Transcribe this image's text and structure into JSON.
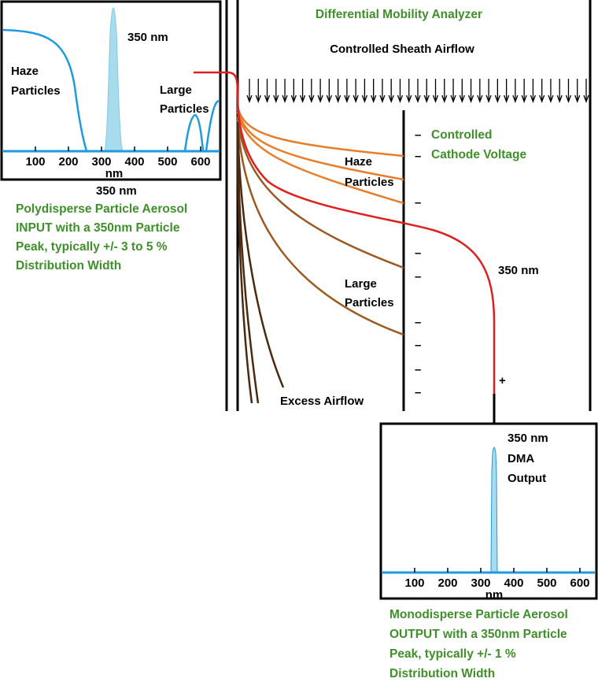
{
  "title": "Differential Mobility Analyzer",
  "sheath_label": "Controlled Sheath Airflow",
  "cathode_label": [
    "Controlled",
    "Cathode Voltage"
  ],
  "haze_label": [
    "Haze",
    "Particles"
  ],
  "large_label": [
    "Large",
    "Particles"
  ],
  "size_label_main": "350 nm",
  "excess_label": "Excess Airflow",
  "plus_sign": "+",
  "minus_sign": "–",
  "input_chart": {
    "peak_label": "350 nm",
    "haze_label": [
      "Haze",
      "Particles"
    ],
    "large_label": [
      "Large",
      "Particles"
    ],
    "ticks": [
      "100",
      "200",
      "300",
      "400",
      "500",
      "600"
    ],
    "axis_unit": "nm",
    "below_label": "350 nm",
    "description": [
      "Polydisperse Particle Aerosol",
      "INPUT with a 350nm Particle",
      "Peak, typically +/- 3 to 5 %",
      "Distribution Width"
    ]
  },
  "output_chart": {
    "peak_label": [
      "350 nm",
      "DMA",
      "Output"
    ],
    "ticks": [
      "100",
      "200",
      "300",
      "400",
      "500",
      "600"
    ],
    "axis_unit": "nm",
    "description": [
      "Monodisperse Particle Aerosol",
      "OUTPUT with a 350nm Particle",
      "Peak, typically +/- 1 %",
      "Distribution Width"
    ]
  },
  "colors": {
    "accent_green": "#3f8f2a",
    "plot_blue": "#1e9be0",
    "peak_fill": "#a8dcec",
    "selected_path": "#e01e1e",
    "haze_path": "#e87d2a",
    "large_path": "#9b5a22",
    "excess_path": "#4a2a10"
  }
}
